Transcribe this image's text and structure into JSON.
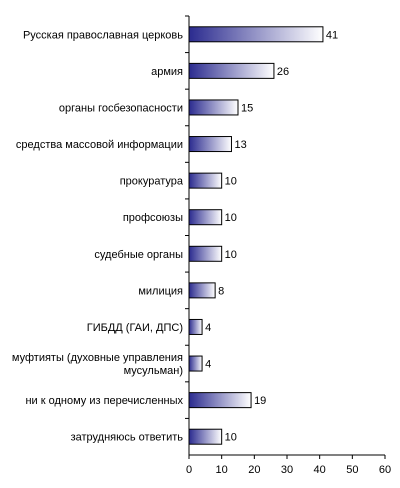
{
  "chart_data": {
    "type": "bar",
    "orientation": "horizontal",
    "categories": [
      [
        "Русская православная церковь"
      ],
      [
        "армия"
      ],
      [
        "органы госбезопасности"
      ],
      [
        "средства массовой информации"
      ],
      [
        "прокуратура"
      ],
      [
        "профсоюзы"
      ],
      [
        "судебные органы"
      ],
      [
        "милиция"
      ],
      [
        "ГИБДД (ГАИ, ДПС)"
      ],
      [
        "муфтияты (духовные управления",
        "мусульман)"
      ],
      [
        "ни к одному из перечисленных"
      ],
      [
        "затрудняюсь ответить"
      ]
    ],
    "values": [
      41,
      26,
      15,
      13,
      10,
      10,
      10,
      8,
      4,
      4,
      19,
      10
    ],
    "xlim": [
      0,
      60
    ],
    "x_ticks": [
      0,
      10,
      20,
      30,
      40,
      50,
      60
    ],
    "title": "",
    "xlabel": "",
    "ylabel": "",
    "grid": false,
    "legend": "none",
    "bar_gradient": [
      "#2b2b8f",
      "#ffffff"
    ]
  }
}
